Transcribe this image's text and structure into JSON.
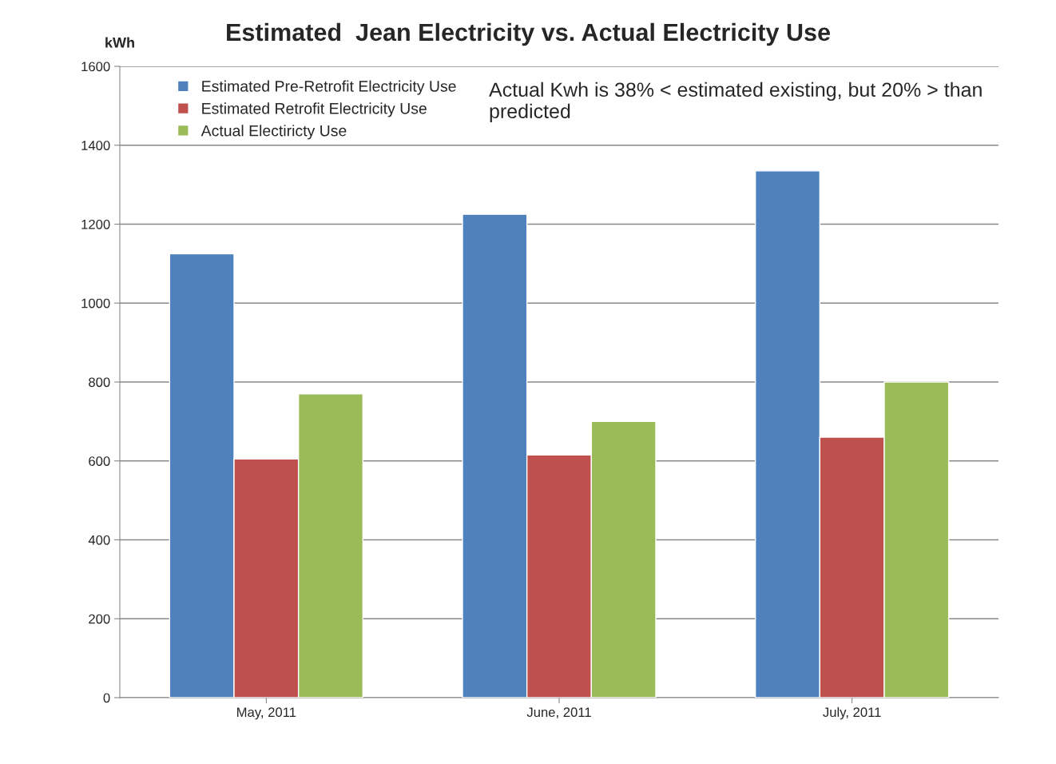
{
  "chart_data": {
    "type": "bar",
    "title": "Estimated  Jean Electricity vs. Actual Electricity Use",
    "ylabel": "kWh",
    "categories": [
      "May, 2011",
      "June, 2011",
      "July, 2011"
    ],
    "series": [
      {
        "name": "Estimated Pre-Retrofit Electricity Use",
        "color": "#4f81bd",
        "values": [
          1125,
          1225,
          1335
        ]
      },
      {
        "name": "Estimated Retrofit Electricity Use",
        "color": "#c0504d",
        "values": [
          605,
          615,
          660
        ]
      },
      {
        "name": "Actual Electiricty Use",
        "color": "#9bbb59",
        "values": [
          770,
          700,
          800
        ]
      }
    ],
    "ylim": [
      0,
      1600
    ],
    "yticks": [
      0,
      200,
      400,
      600,
      800,
      1000,
      1200,
      1400,
      1600
    ],
    "grid": "y",
    "legend": "top left",
    "annotations": [
      "Actual Kwh is 38% < estimated existing, but 20% > than predicted"
    ]
  }
}
